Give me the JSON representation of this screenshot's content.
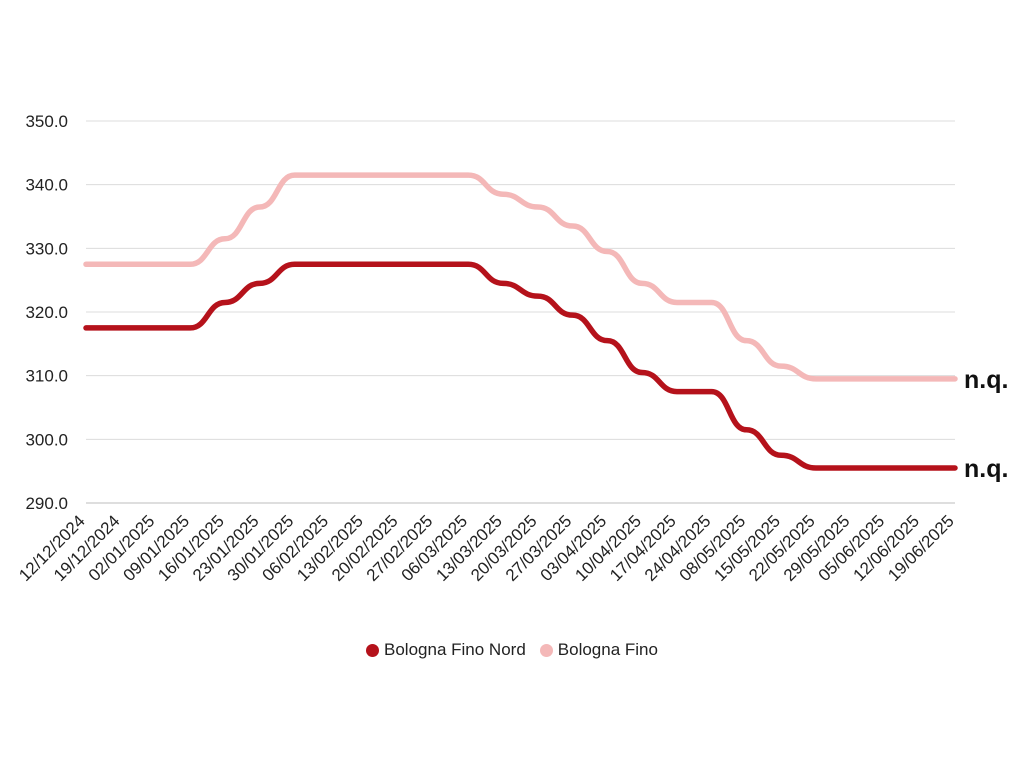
{
  "chart_data": {
    "type": "line",
    "ylim": [
      290,
      350
    ],
    "yticks": [
      "290.0",
      "300.0",
      "310.0",
      "320.0",
      "330.0",
      "340.0",
      "350.0"
    ],
    "x_labels": [
      "12/12/2024",
      "19/12/2024",
      "02/01/2025",
      "09/01/2025",
      "16/01/2025",
      "23/01/2025",
      "30/01/2025",
      "06/02/2025",
      "13/02/2025",
      "20/02/2025",
      "27/02/2025",
      "06/03/2025",
      "13/03/2025",
      "20/03/2025",
      "27/03/2025",
      "03/04/2025",
      "10/04/2025",
      "17/04/2025",
      "24/04/2025",
      "08/05/2025",
      "15/05/2025",
      "22/05/2025",
      "29/05/2025",
      "05/06/2025",
      "12/06/2025",
      "19/06/2025"
    ],
    "grid": true,
    "legend_position": "bottom",
    "series": [
      {
        "name": "Bologna Fino Nord",
        "color": "#b5121b",
        "values": [
          317.5,
          317.5,
          317.5,
          317.5,
          321.5,
          324.5,
          327.5,
          327.5,
          327.5,
          327.5,
          327.5,
          327.5,
          324.5,
          322.5,
          319.5,
          315.5,
          310.5,
          307.5,
          307.5,
          301.5,
          297.5,
          295.5,
          295.5,
          295.5,
          295.5,
          295.5
        ],
        "end_label": "n.q."
      },
      {
        "name": "Bologna Fino",
        "color": "#f4b8b8",
        "values": [
          327.5,
          327.5,
          327.5,
          327.5,
          331.5,
          336.5,
          341.5,
          341.5,
          341.5,
          341.5,
          341.5,
          341.5,
          338.5,
          336.5,
          333.5,
          329.5,
          324.5,
          321.5,
          321.5,
          315.5,
          311.5,
          309.5,
          309.5,
          309.5,
          309.5,
          309.5
        ],
        "end_label": "n.q."
      }
    ]
  }
}
